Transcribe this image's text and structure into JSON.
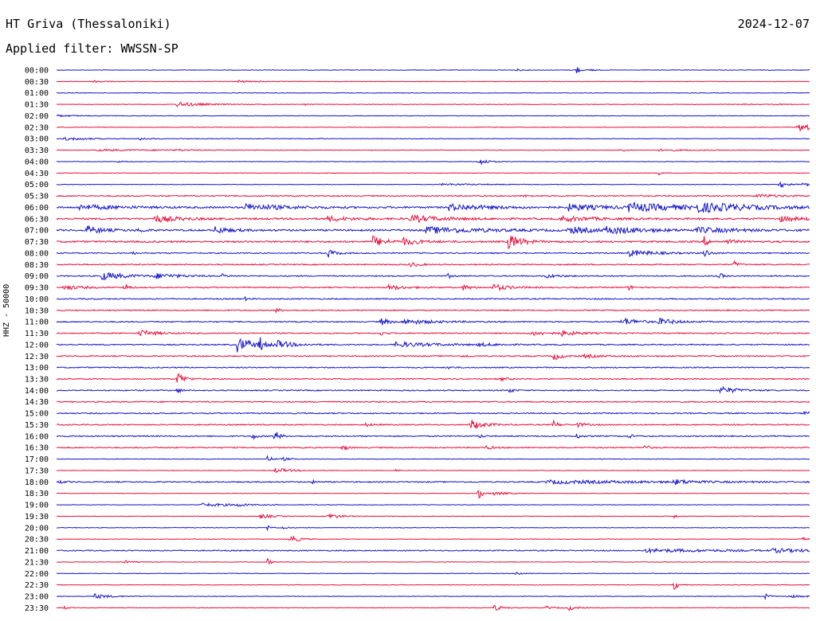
{
  "header": {
    "station": "HT Griva (Thessaloniki)",
    "date": "2024-12-07",
    "filter": "Applied filter: WWSSN-SP",
    "channel": "HHZ - 50000"
  },
  "colors": {
    "trace_even": "#1515c8",
    "trace_odd": "#e8103c"
  },
  "chart_data": {
    "type": "line",
    "title": "HT Griva (Thessaloniki)",
    "subtitle": "Applied filter: WWSSN-SP",
    "ylabel": "HHZ - 50000",
    "xlabel": "",
    "grid": false,
    "row_labels": [
      "00:00",
      "00:30",
      "01:00",
      "01:30",
      "02:00",
      "02:30",
      "03:00",
      "03:30",
      "04:00",
      "04:30",
      "05:00",
      "05:30",
      "06:00",
      "06:30",
      "07:00",
      "07:30",
      "08:00",
      "08:30",
      "09:00",
      "09:30",
      "10:00",
      "10:30",
      "11:00",
      "11:30",
      "12:00",
      "12:30",
      "13:00",
      "13:30",
      "14:00",
      "14:30",
      "15:00",
      "15:30",
      "16:00",
      "16:30",
      "17:00",
      "17:30",
      "18:00",
      "18:30",
      "19:00",
      "19:30",
      "20:00",
      "20:30",
      "21:00",
      "21:30",
      "22:00",
      "22:30",
      "23:00",
      "23:30"
    ],
    "background_noise": [
      1,
      1,
      1,
      1,
      1,
      1,
      1,
      1,
      1,
      1,
      1,
      2,
      3,
      3,
      3,
      3,
      2,
      2,
      2,
      2,
      2,
      2,
      2,
      2,
      2,
      2,
      2,
      2,
      2,
      2,
      2,
      2,
      2,
      2,
      1,
      1,
      2,
      1,
      1,
      1,
      1,
      1,
      2,
      1,
      1,
      1,
      1,
      1
    ],
    "events": [
      {
        "row": 0,
        "t": 0.61,
        "amp": 2,
        "dur": 0.005
      },
      {
        "row": 0,
        "t": 0.69,
        "amp": 6,
        "dur": 0.004
      },
      {
        "row": 0,
        "t": 0.71,
        "amp": 3,
        "dur": 0.003
      },
      {
        "row": 1,
        "t": 0.05,
        "amp": 2,
        "dur": 0.01
      },
      {
        "row": 1,
        "t": 0.24,
        "amp": 2,
        "dur": 0.01
      },
      {
        "row": 1,
        "t": 0.27,
        "amp": 1,
        "dur": 0.004
      },
      {
        "row": 3,
        "t": 0.16,
        "amp": 3,
        "dur": 0.03
      },
      {
        "row": 3,
        "t": 0.33,
        "amp": 1,
        "dur": 0.005
      },
      {
        "row": 3,
        "t": 0.91,
        "amp": 1,
        "dur": 0.01
      },
      {
        "row": 3,
        "t": 0.95,
        "amp": 1,
        "dur": 0.01
      },
      {
        "row": 4,
        "t": 0.0,
        "amp": 1,
        "dur": 0.025
      },
      {
        "row": 5,
        "t": 0.985,
        "amp": 5,
        "dur": 0.03
      },
      {
        "row": 6,
        "t": 0.01,
        "amp": 2,
        "dur": 0.03
      },
      {
        "row": 6,
        "t": 0.11,
        "amp": 2,
        "dur": 0.01
      },
      {
        "row": 6,
        "t": 0.35,
        "amp": 1,
        "dur": 0.005
      },
      {
        "row": 7,
        "t": 0.05,
        "amp": 1,
        "dur": 0.1
      },
      {
        "row": 7,
        "t": 0.16,
        "amp": 1,
        "dur": 0.01
      },
      {
        "row": 7,
        "t": 0.75,
        "amp": 2,
        "dur": 0.006
      },
      {
        "row": 7,
        "t": 0.8,
        "amp": 1,
        "dur": 0.05
      },
      {
        "row": 8,
        "t": 0.08,
        "amp": 1,
        "dur": 0.01
      },
      {
        "row": 8,
        "t": 0.56,
        "amp": 5,
        "dur": 0.01
      },
      {
        "row": 9,
        "t": 0.8,
        "amp": 2,
        "dur": 0.004
      },
      {
        "row": 10,
        "t": 0.51,
        "amp": 1,
        "dur": 0.06
      },
      {
        "row": 10,
        "t": 0.96,
        "amp": 4,
        "dur": 0.01
      },
      {
        "row": 10,
        "t": 0.99,
        "amp": 2,
        "dur": 0.02
      },
      {
        "row": 11,
        "t": 0.93,
        "amp": 2,
        "dur": 0.03
      },
      {
        "row": 11,
        "t": 0.62,
        "amp": 1,
        "dur": 0.01
      },
      {
        "row": 12,
        "t": 0.03,
        "amp": 3,
        "dur": 0.05
      },
      {
        "row": 12,
        "t": 0.25,
        "amp": 4,
        "dur": 0.05
      },
      {
        "row": 12,
        "t": 0.52,
        "amp": 4,
        "dur": 0.05
      },
      {
        "row": 12,
        "t": 0.68,
        "amp": 4,
        "dur": 0.04
      },
      {
        "row": 12,
        "t": 0.76,
        "amp": 5,
        "dur": 0.07
      },
      {
        "row": 12,
        "t": 0.85,
        "amp": 5,
        "dur": 0.07
      },
      {
        "row": 13,
        "t": 0.13,
        "amp": 4,
        "dur": 0.03
      },
      {
        "row": 13,
        "t": 0.36,
        "amp": 3,
        "dur": 0.03
      },
      {
        "row": 13,
        "t": 0.47,
        "amp": 4,
        "dur": 0.04
      },
      {
        "row": 13,
        "t": 0.67,
        "amp": 3,
        "dur": 0.04
      },
      {
        "row": 13,
        "t": 0.96,
        "amp": 3,
        "dur": 0.03
      },
      {
        "row": 14,
        "t": 0.04,
        "amp": 5,
        "dur": 0.02
      },
      {
        "row": 14,
        "t": 0.11,
        "amp": 4,
        "dur": 0.005
      },
      {
        "row": 14,
        "t": 0.21,
        "amp": 4,
        "dur": 0.02
      },
      {
        "row": 14,
        "t": 0.49,
        "amp": 4,
        "dur": 0.07
      },
      {
        "row": 14,
        "t": 0.68,
        "amp": 4,
        "dur": 0.03
      },
      {
        "row": 14,
        "t": 0.73,
        "amp": 4,
        "dur": 0.05
      },
      {
        "row": 14,
        "t": 0.85,
        "amp": 3,
        "dur": 0.05
      },
      {
        "row": 15,
        "t": 0.42,
        "amp": 7,
        "dur": 0.015
      },
      {
        "row": 15,
        "t": 0.46,
        "amp": 4,
        "dur": 0.02
      },
      {
        "row": 15,
        "t": 0.6,
        "amp": 10,
        "dur": 0.015
      },
      {
        "row": 15,
        "t": 0.86,
        "amp": 6,
        "dur": 0.005
      },
      {
        "row": 15,
        "t": 0.89,
        "amp": 3,
        "dur": 0.01
      },
      {
        "row": 16,
        "t": 0.1,
        "amp": 2,
        "dur": 0.005
      },
      {
        "row": 16,
        "t": 0.36,
        "amp": 5,
        "dur": 0.01
      },
      {
        "row": 16,
        "t": 0.76,
        "amp": 4,
        "dur": 0.03
      },
      {
        "row": 16,
        "t": 0.86,
        "amp": 7,
        "dur": 0.005
      },
      {
        "row": 17,
        "t": 0.47,
        "amp": 3,
        "dur": 0.01
      },
      {
        "row": 17,
        "t": 0.9,
        "amp": 4,
        "dur": 0.005
      },
      {
        "row": 18,
        "t": 0.06,
        "amp": 5,
        "dur": 0.03
      },
      {
        "row": 18,
        "t": 0.13,
        "amp": 3,
        "dur": 0.03
      },
      {
        "row": 18,
        "t": 0.22,
        "amp": 2,
        "dur": 0.005
      },
      {
        "row": 18,
        "t": 0.52,
        "amp": 3,
        "dur": 0.005
      },
      {
        "row": 18,
        "t": 0.65,
        "amp": 2,
        "dur": 0.02
      },
      {
        "row": 18,
        "t": 0.88,
        "amp": 4,
        "dur": 0.005
      },
      {
        "row": 19,
        "t": 0.01,
        "amp": 3,
        "dur": 0.02
      },
      {
        "row": 19,
        "t": 0.09,
        "amp": 6,
        "dur": 0.005
      },
      {
        "row": 19,
        "t": 0.44,
        "amp": 3,
        "dur": 0.02
      },
      {
        "row": 19,
        "t": 0.54,
        "amp": 3,
        "dur": 0.01
      },
      {
        "row": 19,
        "t": 0.58,
        "amp": 4,
        "dur": 0.02
      },
      {
        "row": 19,
        "t": 0.76,
        "amp": 3,
        "dur": 0.005
      },
      {
        "row": 20,
        "t": 0.25,
        "amp": 2,
        "dur": 0.005
      },
      {
        "row": 21,
        "t": 0.29,
        "amp": 3,
        "dur": 0.005
      },
      {
        "row": 22,
        "t": 0.43,
        "amp": 5,
        "dur": 0.01
      },
      {
        "row": 22,
        "t": 0.46,
        "amp": 3,
        "dur": 0.04
      },
      {
        "row": 22,
        "t": 0.75,
        "amp": 5,
        "dur": 0.02
      },
      {
        "row": 22,
        "t": 0.8,
        "amp": 4,
        "dur": 0.02
      },
      {
        "row": 23,
        "t": 0.11,
        "amp": 4,
        "dur": 0.02
      },
      {
        "row": 23,
        "t": 0.43,
        "amp": 3,
        "dur": 0.005
      },
      {
        "row": 23,
        "t": 0.63,
        "amp": 3,
        "dur": 0.02
      },
      {
        "row": 23,
        "t": 0.67,
        "amp": 3,
        "dur": 0.02
      },
      {
        "row": 24,
        "t": 0.24,
        "amp": 9,
        "dur": 0.02
      },
      {
        "row": 24,
        "t": 0.27,
        "amp": 8,
        "dur": 0.005
      },
      {
        "row": 24,
        "t": 0.29,
        "amp": 5,
        "dur": 0.02
      },
      {
        "row": 24,
        "t": 0.45,
        "amp": 3,
        "dur": 0.05
      },
      {
        "row": 24,
        "t": 0.56,
        "amp": 2,
        "dur": 0.02
      },
      {
        "row": 25,
        "t": 0.54,
        "amp": 2,
        "dur": 0.005
      },
      {
        "row": 25,
        "t": 0.66,
        "amp": 5,
        "dur": 0.01
      },
      {
        "row": 25,
        "t": 0.7,
        "amp": 2,
        "dur": 0.02
      },
      {
        "row": 26,
        "t": 0.52,
        "amp": 2,
        "dur": 0.005
      },
      {
        "row": 27,
        "t": 0.16,
        "amp": 10,
        "dur": 0.008
      },
      {
        "row": 27,
        "t": 0.59,
        "amp": 2,
        "dur": 0.01
      },
      {
        "row": 28,
        "t": 0.16,
        "amp": 4,
        "dur": 0.005
      },
      {
        "row": 28,
        "t": 0.6,
        "amp": 4,
        "dur": 0.005
      },
      {
        "row": 28,
        "t": 0.88,
        "amp": 5,
        "dur": 0.02
      },
      {
        "row": 30,
        "t": 0.99,
        "amp": 2,
        "dur": 0.02
      },
      {
        "row": 31,
        "t": 0.41,
        "amp": 2,
        "dur": 0.01
      },
      {
        "row": 31,
        "t": 0.55,
        "amp": 7,
        "dur": 0.015
      },
      {
        "row": 31,
        "t": 0.66,
        "amp": 6,
        "dur": 0.005
      },
      {
        "row": 31,
        "t": 0.69,
        "amp": 3,
        "dur": 0.01
      },
      {
        "row": 32,
        "t": 0.26,
        "amp": 4,
        "dur": 0.005
      },
      {
        "row": 32,
        "t": 0.29,
        "amp": 8,
        "dur": 0.005
      },
      {
        "row": 32,
        "t": 0.56,
        "amp": 3,
        "dur": 0.005
      },
      {
        "row": 32,
        "t": 0.69,
        "amp": 4,
        "dur": 0.005
      },
      {
        "row": 32,
        "t": 0.76,
        "amp": 3,
        "dur": 0.005
      },
      {
        "row": 33,
        "t": 0.38,
        "amp": 5,
        "dur": 0.005
      },
      {
        "row": 33,
        "t": 0.57,
        "amp": 2,
        "dur": 0.01
      },
      {
        "row": 33,
        "t": 0.78,
        "amp": 4,
        "dur": 0.005
      },
      {
        "row": 34,
        "t": 0.28,
        "amp": 5,
        "dur": 0.005
      },
      {
        "row": 34,
        "t": 0.3,
        "amp": 2,
        "dur": 0.01
      },
      {
        "row": 35,
        "t": 0.29,
        "amp": 3,
        "dur": 0.02
      },
      {
        "row": 35,
        "t": 0.45,
        "amp": 1,
        "dur": 0.005
      },
      {
        "row": 36,
        "t": 0.0,
        "amp": 2,
        "dur": 0.01
      },
      {
        "row": 36,
        "t": 0.34,
        "amp": 2,
        "dur": 0.005
      },
      {
        "row": 36,
        "t": 0.65,
        "amp": 2,
        "dur": 0.15
      },
      {
        "row": 36,
        "t": 0.82,
        "amp": 3,
        "dur": 0.02
      },
      {
        "row": 37,
        "t": 0.56,
        "amp": 8,
        "dur": 0.005
      },
      {
        "row": 37,
        "t": 0.58,
        "amp": 2,
        "dur": 0.02
      },
      {
        "row": 38,
        "t": 0.19,
        "amp": 2,
        "dur": 0.05
      },
      {
        "row": 38,
        "t": 0.24,
        "amp": 3,
        "dur": 0.005
      },
      {
        "row": 39,
        "t": 0.27,
        "amp": 3,
        "dur": 0.015
      },
      {
        "row": 39,
        "t": 0.36,
        "amp": 4,
        "dur": 0.015
      },
      {
        "row": 39,
        "t": 0.82,
        "amp": 2,
        "dur": 0.005
      },
      {
        "row": 40,
        "t": 0.28,
        "amp": 3,
        "dur": 0.005
      },
      {
        "row": 40,
        "t": 0.3,
        "amp": 2,
        "dur": 0.005
      },
      {
        "row": 41,
        "t": 0.31,
        "amp": 6,
        "dur": 0.01
      },
      {
        "row": 41,
        "t": 0.99,
        "amp": 2,
        "dur": 0.01
      },
      {
        "row": 42,
        "t": 0.78,
        "amp": 2,
        "dur": 0.1
      },
      {
        "row": 42,
        "t": 0.95,
        "amp": 2,
        "dur": 0.05
      },
      {
        "row": 43,
        "t": 0.09,
        "amp": 2,
        "dur": 0.01
      },
      {
        "row": 43,
        "t": 0.28,
        "amp": 4,
        "dur": 0.005
      },
      {
        "row": 44,
        "t": 0.61,
        "amp": 4,
        "dur": 0.005
      },
      {
        "row": 45,
        "t": 0.82,
        "amp": 7,
        "dur": 0.005
      },
      {
        "row": 46,
        "t": 0.05,
        "amp": 3,
        "dur": 0.02
      },
      {
        "row": 46,
        "t": 0.94,
        "amp": 4,
        "dur": 0.005
      },
      {
        "row": 46,
        "t": 0.97,
        "amp": 2,
        "dur": 0.02
      },
      {
        "row": 47,
        "t": 0.01,
        "amp": 2,
        "dur": 0.005
      },
      {
        "row": 47,
        "t": 0.58,
        "amp": 4,
        "dur": 0.01
      },
      {
        "row": 47,
        "t": 0.65,
        "amp": 2,
        "dur": 0.01
      },
      {
        "row": 47,
        "t": 0.68,
        "amp": 3,
        "dur": 0.01
      }
    ]
  }
}
